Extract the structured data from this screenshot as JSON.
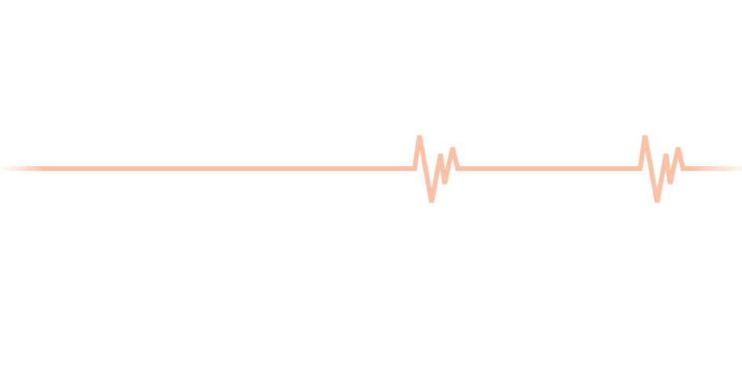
{
  "illustration": {
    "name": "heartbeat-line",
    "stroke_color": "#f9c1a5",
    "background_color": "#ffffff"
  }
}
